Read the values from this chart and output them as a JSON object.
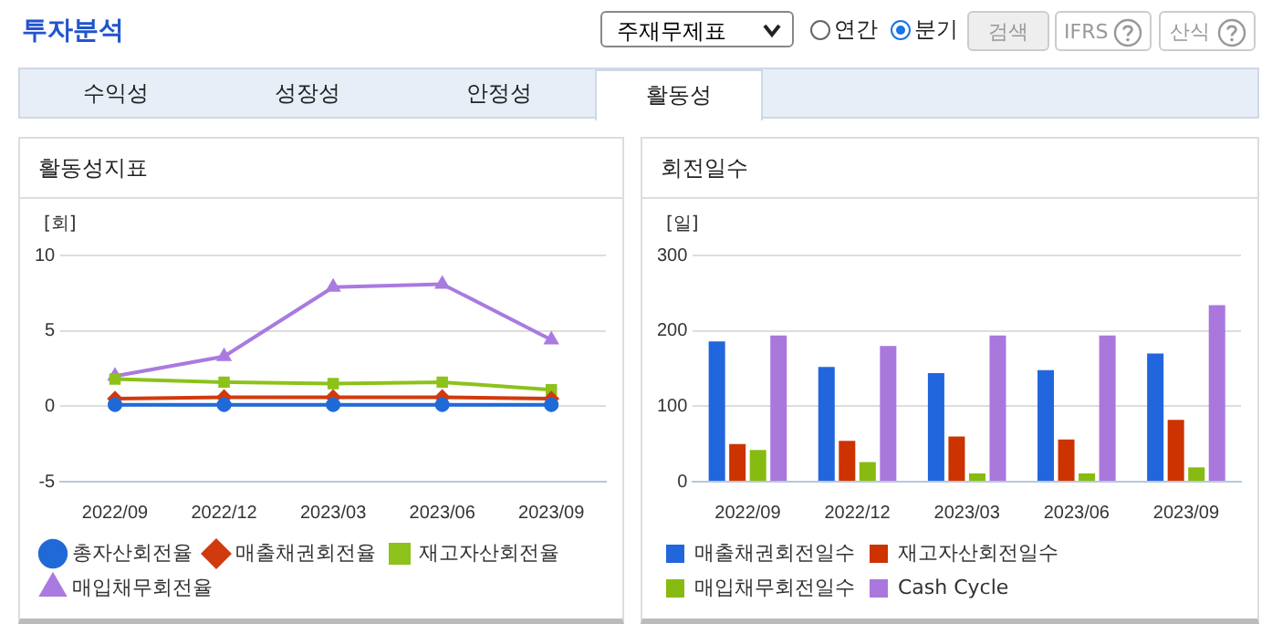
{
  "chart_data": [
    {
      "type": "other",
      "title": "투자분석",
      "annotations": [
        "주재무제표",
        "연간",
        "분기",
        "검색",
        "IFRS",
        "산식",
        "수익성",
        "성장성",
        "안정성",
        "활동성"
      ]
    },
    {
      "type": "line",
      "title": "활동성지표",
      "ylabel": "[회]",
      "categories": [
        "2022/09",
        "2022/12",
        "2023/03",
        "2023/06",
        "2023/09"
      ],
      "ylim": [
        -5,
        10
      ],
      "yticks": [
        -5,
        0,
        5,
        10
      ],
      "grid": "y",
      "legend": "bottom",
      "series": [
        {
          "name": "총자산회전율",
          "color": "#1f6ad6",
          "marker": "circle",
          "values": [
            0.1,
            0.1,
            0.1,
            0.1,
            0.1
          ]
        },
        {
          "name": "매출채권회전율",
          "color": "#d03a0e",
          "marker": "diamond",
          "values": [
            0.5,
            0.6,
            0.6,
            0.6,
            0.5
          ]
        },
        {
          "name": "재고자산회전율",
          "color": "#8cc21a",
          "marker": "square",
          "values": [
            1.8,
            1.6,
            1.5,
            1.6,
            1.1
          ]
        },
        {
          "name": "매입채무회전율",
          "color": "#a97ae0",
          "marker": "triangle",
          "values": [
            2.0,
            3.3,
            7.9,
            8.1,
            4.4
          ]
        }
      ]
    },
    {
      "type": "bar",
      "title": "회전일수",
      "ylabel": "[일]",
      "categories": [
        "2022/09",
        "2022/12",
        "2023/03",
        "2023/06",
        "2023/09"
      ],
      "ylim": [
        0,
        300
      ],
      "yticks": [
        0,
        100,
        200,
        300
      ],
      "grid": "y",
      "legend": "bottom",
      "series": [
        {
          "name": "매출채권회전일수",
          "color": "#2266dd",
          "values": [
            186,
            152,
            144,
            148,
            170
          ]
        },
        {
          "name": "재고자산회전일수",
          "color": "#cc3300",
          "values": [
            50,
            54,
            60,
            56,
            82
          ]
        },
        {
          "name": "매입채무회전일수",
          "color": "#88bb11",
          "values": [
            42,
            26,
            11,
            11,
            19
          ]
        },
        {
          "name": "Cash Cycle",
          "color": "#aa77dd",
          "values": [
            194,
            180,
            194,
            194,
            234
          ]
        }
      ]
    }
  ]
}
